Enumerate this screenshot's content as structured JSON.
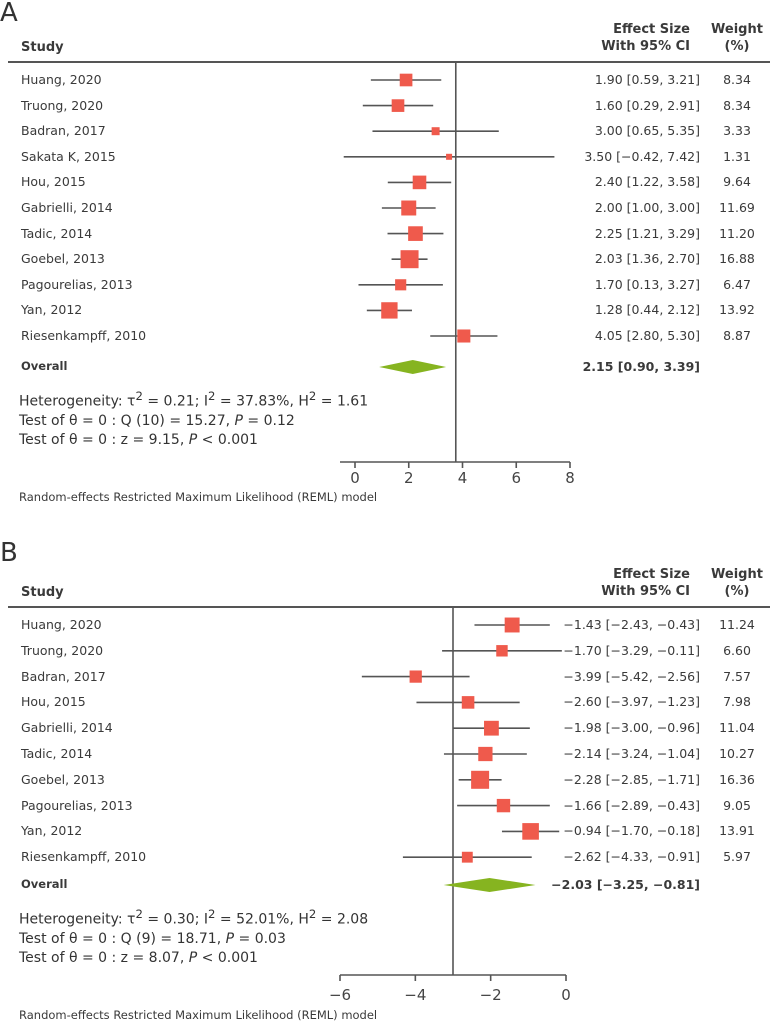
{
  "chart_data": [
    {
      "type": "forest",
      "panel": "A",
      "columns": {
        "study": "Study",
        "effect_line1": "Effect Size",
        "effect_line2": "With 95% CI",
        "weight_line1": "Weight",
        "weight_line2": "(%)"
      },
      "studies": [
        {
          "name": "Huang, 2020",
          "es": 1.9,
          "lo": 0.59,
          "hi": 3.21,
          "label": "1.90 [0.59, 3.21]",
          "weight": "8.34"
        },
        {
          "name": "Truong, 2020",
          "es": 1.6,
          "lo": 0.29,
          "hi": 2.91,
          "label": "1.60 [0.29, 2.91]",
          "weight": "8.34"
        },
        {
          "name": "Badran, 2017",
          "es": 3.0,
          "lo": 0.65,
          "hi": 5.35,
          "label": "3.00 [0.65, 5.35]",
          "weight": "3.33"
        },
        {
          "name": "Sakata K, 2015",
          "es": 3.5,
          "lo": -0.42,
          "hi": 7.42,
          "label": "3.50 [−0.42, 7.42]",
          "weight": "1.31"
        },
        {
          "name": "Hou, 2015",
          "es": 2.4,
          "lo": 1.22,
          "hi": 3.58,
          "label": "2.40 [1.22, 3.58]",
          "weight": "9.64"
        },
        {
          "name": "Gabrielli, 2014",
          "es": 2.0,
          "lo": 1.0,
          "hi": 3.0,
          "label": "2.00 [1.00, 3.00]",
          "weight": "11.69"
        },
        {
          "name": "Tadic, 2014",
          "es": 2.25,
          "lo": 1.21,
          "hi": 3.29,
          "label": "2.25 [1.21, 3.29]",
          "weight": "11.20"
        },
        {
          "name": "Goebel, 2013",
          "es": 2.03,
          "lo": 1.36,
          "hi": 2.7,
          "label": "2.03 [1.36, 2.70]",
          "weight": "16.88"
        },
        {
          "name": "Pagourelias, 2013",
          "es": 1.7,
          "lo": 0.13,
          "hi": 3.27,
          "label": "1.70 [0.13, 3.27]",
          "weight": "6.47"
        },
        {
          "name": "Yan, 2012",
          "es": 1.28,
          "lo": 0.44,
          "hi": 2.12,
          "label": "1.28 [0.44, 2.12]",
          "weight": "13.92"
        },
        {
          "name": "Riesenkampff, 2010",
          "es": 4.05,
          "lo": 2.8,
          "hi": 5.3,
          "label": "4.05 [2.80, 5.30]",
          "weight": "8.87"
        }
      ],
      "overall": {
        "name": "Overall",
        "es": 2.15,
        "lo": 0.9,
        "hi": 3.39,
        "label": "2.15 [0.90, 3.39]"
      },
      "reference_line": 3.75,
      "xlim": [
        0,
        8
      ],
      "xticks": [
        0,
        2,
        4,
        6,
        8
      ],
      "xtick_labels": [
        "0",
        "2",
        "4",
        "6",
        "8"
      ],
      "stats": {
        "heterogeneity": {
          "prefix": "Heterogeneity: τ",
          "tau2": " = 0.21; I",
          "i2": " = 37.83%, H",
          "h2": " = 1.61"
        },
        "q_test": {
          "prefix": "Test of θ = 0 : Q (10) = 15.27, ",
          "p_label": "P",
          "p_value": " = 0.12"
        },
        "z_test": {
          "prefix": "Test of θ = 0 : z = 9.15, ",
          "p_label": "P",
          "p_value": " < 0.001"
        }
      },
      "footnote": "Random-effects Restricted Maximum Likelihood (REML) model"
    },
    {
      "type": "forest",
      "panel": "B",
      "columns": {
        "study": "Study",
        "effect_line1": "Effect Size",
        "effect_line2": "With 95% CI",
        "weight_line1": "Weight",
        "weight_line2": "(%)"
      },
      "studies": [
        {
          "name": "Huang, 2020",
          "es": -1.43,
          "lo": -2.43,
          "hi": -0.43,
          "label": "−1.43 [−2.43, −0.43]",
          "weight": "11.24"
        },
        {
          "name": "Truong, 2020",
          "es": -1.7,
          "lo": -3.29,
          "hi": -0.11,
          "label": "−1.70 [−3.29, −0.11]",
          "weight": "6.60"
        },
        {
          "name": "Badran, 2017",
          "es": -3.99,
          "lo": -5.42,
          "hi": -2.56,
          "label": "−3.99 [−5.42, −2.56]",
          "weight": "7.57"
        },
        {
          "name": "Hou, 2015",
          "es": -2.6,
          "lo": -3.97,
          "hi": -1.23,
          "label": "−2.60 [−3.97, −1.23]",
          "weight": "7.98"
        },
        {
          "name": "Gabrielli, 2014",
          "es": -1.98,
          "lo": -3.0,
          "hi": -0.96,
          "label": "−1.98 [−3.00, −0.96]",
          "weight": "11.04"
        },
        {
          "name": "Tadic, 2014",
          "es": -2.14,
          "lo": -3.24,
          "hi": -1.04,
          "label": "−2.14 [−3.24, −1.04]",
          "weight": "10.27"
        },
        {
          "name": "Goebel, 2013",
          "es": -2.28,
          "lo": -2.85,
          "hi": -1.71,
          "label": "−2.28 [−2.85, −1.71]",
          "weight": "16.36"
        },
        {
          "name": "Pagourelias, 2013",
          "es": -1.66,
          "lo": -2.89,
          "hi": -0.43,
          "label": "−1.66 [−2.89, −0.43]",
          "weight": "9.05"
        },
        {
          "name": "Yan, 2012",
          "es": -0.94,
          "lo": -1.7,
          "hi": -0.18,
          "label": "−0.94 [−1.70, −0.18]",
          "weight": "13.91"
        },
        {
          "name": "Riesenkampff, 2010",
          "es": -2.62,
          "lo": -4.33,
          "hi": -0.91,
          "label": "−2.62 [−4.33, −0.91]",
          "weight": "5.97"
        }
      ],
      "overall": {
        "name": "Overall",
        "es": -2.03,
        "lo": -3.25,
        "hi": -0.81,
        "label": "−2.03 [−3.25, −0.81]"
      },
      "reference_line": -3.0,
      "xlim": [
        -6,
        0
      ],
      "xticks": [
        -6,
        -4,
        -2,
        0
      ],
      "xtick_labels": [
        "−6",
        "−4",
        "−2",
        "0"
      ],
      "stats": {
        "heterogeneity": {
          "prefix": "Heterogeneity: τ",
          "tau2": " = 0.30; I",
          "i2": " = 52.01%, H",
          "h2": " = 2.08"
        },
        "q_test": {
          "prefix": "Test of θ = 0 : Q (9) = 18.71, ",
          "p_label": "P",
          "p_value": " = 0.03"
        },
        "z_test": {
          "prefix": "Test of θ = 0 : z = 8.07, ",
          "p_label": "P",
          "p_value": " < 0.001"
        }
      },
      "footnote": "Random-effects Restricted Maximum Likelihood (REML) model"
    }
  ],
  "colors": {
    "marker": "#ef5a4c",
    "diamond": "#86b420",
    "line": "#555555",
    "text": "#3a3a3a"
  },
  "superscript": "2"
}
